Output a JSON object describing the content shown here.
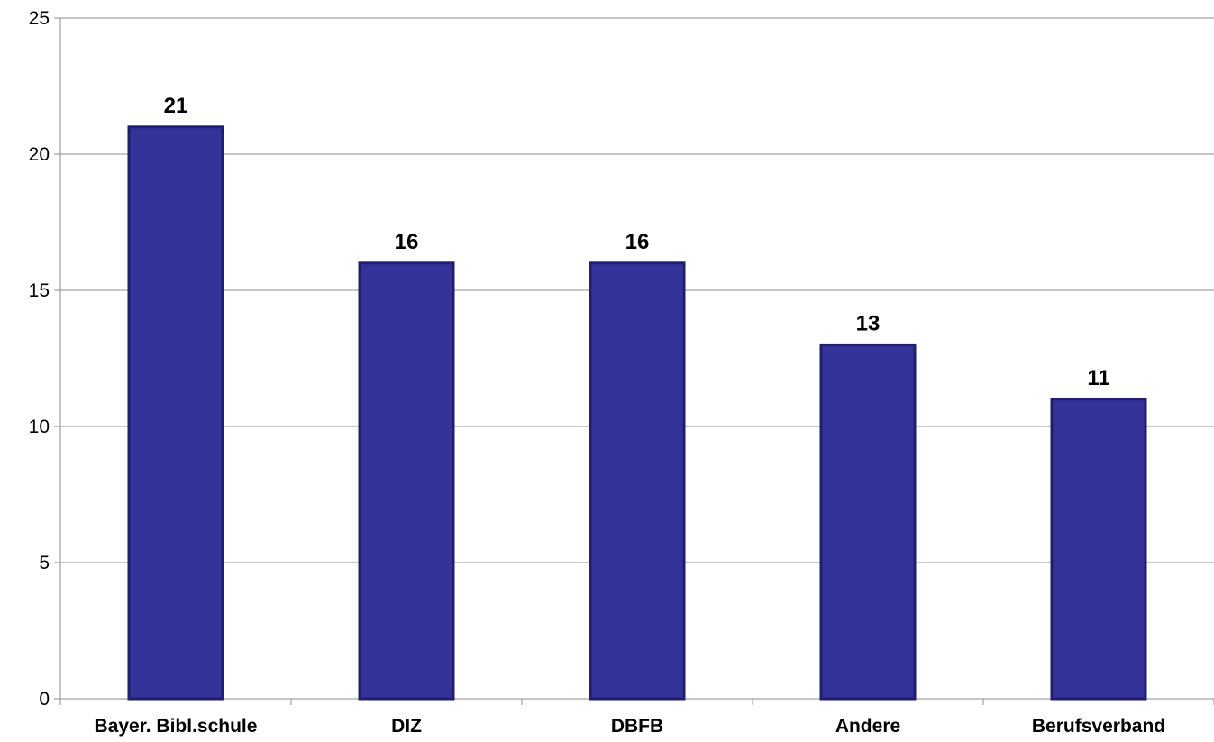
{
  "chart_data": {
    "type": "bar",
    "categories": [
      "Bayer. Bibl.schule",
      "DIZ",
      "DBFB",
      "Andere",
      "Berufsverband"
    ],
    "values": [
      21,
      16,
      16,
      13,
      11
    ],
    "data_labels": [
      "21",
      "16",
      "16",
      "13",
      "11"
    ],
    "title": "",
    "xlabel": "",
    "ylabel": "",
    "ylim": [
      0,
      25
    ],
    "yticks": [
      0,
      5,
      10,
      15,
      20,
      25
    ],
    "ytick_labels": [
      "0",
      "5",
      "10",
      "15",
      "20",
      "25"
    ],
    "grid": true,
    "legend": "none",
    "colors": {
      "bar_fill": "#333399",
      "bar_edge": "#1f1f6b",
      "grid": "#8c8c8c",
      "axis": "#8c8c8c"
    }
  }
}
